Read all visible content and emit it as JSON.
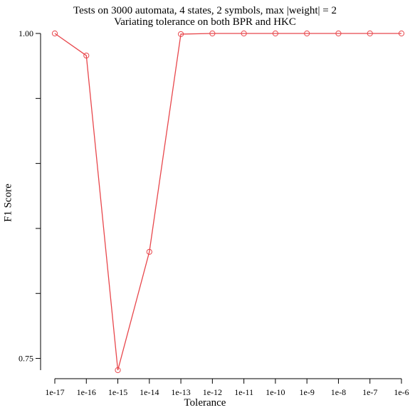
{
  "chart_data": {
    "type": "line",
    "title": "Tests on 3000 automata, 4 states, 2 symbols, max |weight| = 2",
    "subtitle": "Variating tolerance on both BPR and HKC",
    "xlabel": "Tolerance",
    "ylabel": "F1 Score",
    "categories": [
      "1e-17",
      "1e-16",
      "1e-15",
      "1e-14",
      "1e-13",
      "1e-12",
      "1e-11",
      "1e-10",
      "1e-9",
      "1e-8",
      "1e-7",
      "1e-6"
    ],
    "y_ticks": [
      0.75,
      1.0
    ],
    "y_tick_labels": [
      "0.75",
      "1.00"
    ],
    "y_minor_ticks": [
      0.8,
      0.85,
      0.9,
      0.95
    ],
    "ylim": [
      0.741,
      1.0
    ],
    "grid": false,
    "series": [
      {
        "values": [
          1.0,
          0.983,
          0.741,
          0.832,
          0.9995,
          1.0,
          1.0,
          1.0,
          1.0,
          1.0,
          1.0,
          1.0
        ],
        "color": "#e8474c",
        "marker": "open-circle"
      }
    ]
  }
}
